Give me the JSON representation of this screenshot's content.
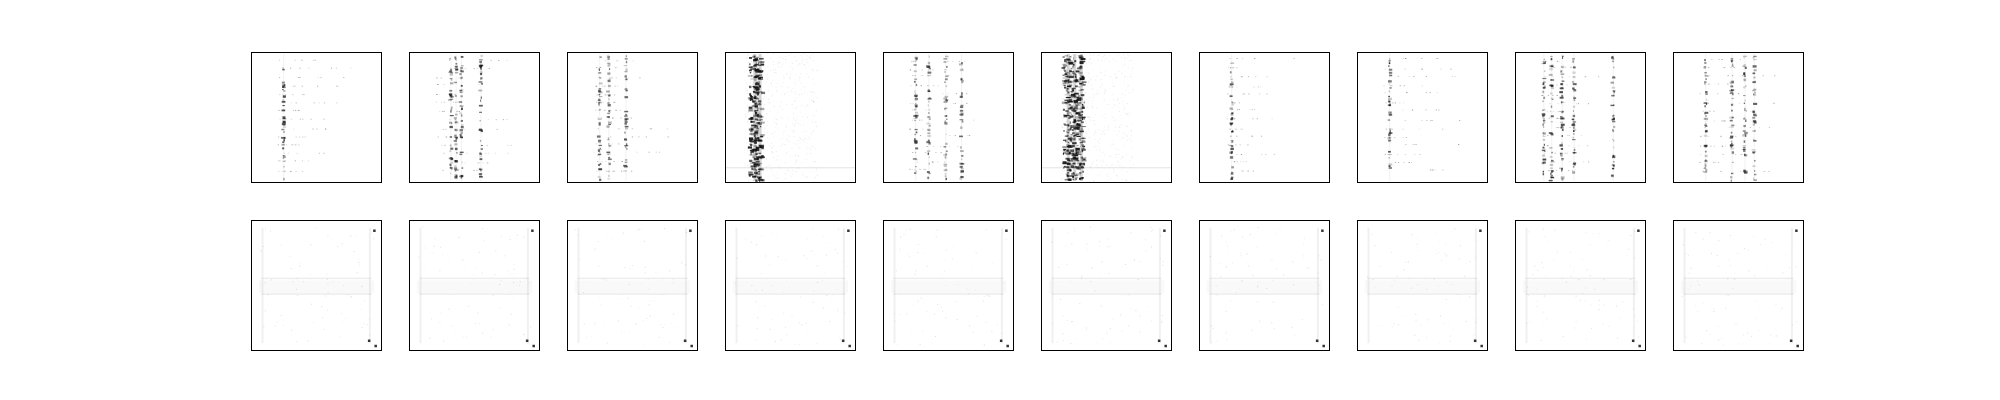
{
  "figure": {
    "background_color": "#ffffff",
    "frame_color": "#000000",
    "ink_color": "#111111"
  },
  "chart_data": {
    "type": "heatmap",
    "title": "",
    "xlabel": "",
    "ylabel": "",
    "grid": false,
    "ticks": false,
    "colormap": "greys",
    "value_range": [
      0,
      1
    ],
    "rows": 2,
    "columns": 10,
    "panels": [
      {
        "row": 0,
        "col": 0,
        "pattern": "vertical-streak",
        "streak_x": [
          0.25
        ],
        "intensity": 0.85
      },
      {
        "row": 0,
        "col": 1,
        "pattern": "vertical-streak",
        "streak_x": [
          0.32,
          0.36,
          0.4,
          0.55
        ],
        "intensity": 0.8
      },
      {
        "row": 0,
        "col": 2,
        "pattern": "vertical-streak",
        "streak_x": [
          0.25,
          0.32,
          0.45
        ],
        "intensity": 0.7
      },
      {
        "row": 0,
        "col": 3,
        "pattern": "dense-band",
        "streak_x": [
          0.22,
          0.26
        ],
        "intensity": 0.95
      },
      {
        "row": 0,
        "col": 4,
        "pattern": "vertical-streak",
        "streak_x": [
          0.25,
          0.35,
          0.48,
          0.6
        ],
        "intensity": 0.7
      },
      {
        "row": 0,
        "col": 5,
        "pattern": "dense-band",
        "streak_x": [
          0.2,
          0.25,
          0.3
        ],
        "intensity": 0.95
      },
      {
        "row": 0,
        "col": 6,
        "pattern": "vertical-streak",
        "streak_x": [
          0.25
        ],
        "intensity": 0.85
      },
      {
        "row": 0,
        "col": 7,
        "pattern": "vertical-streak",
        "streak_x": [
          0.25
        ],
        "intensity": 0.8
      },
      {
        "row": 0,
        "col": 8,
        "pattern": "vertical-streak",
        "streak_x": [
          0.22,
          0.28,
          0.36,
          0.45,
          0.75
        ],
        "intensity": 0.8
      },
      {
        "row": 0,
        "col": 9,
        "pattern": "vertical-streak",
        "streak_x": [
          0.25,
          0.45,
          0.55,
          0.62
        ],
        "intensity": 0.7
      },
      {
        "row": 1,
        "col": 0,
        "pattern": "faint-h-frame",
        "corner_points": [
          [
            0.94,
            0.08
          ],
          [
            0.9,
            0.92
          ],
          [
            0.95,
            0.96
          ]
        ],
        "intensity": 0.18
      },
      {
        "row": 1,
        "col": 1,
        "pattern": "faint-h-frame",
        "corner_points": [
          [
            0.94,
            0.08
          ],
          [
            0.9,
            0.92
          ],
          [
            0.95,
            0.96
          ]
        ],
        "intensity": 0.18
      },
      {
        "row": 1,
        "col": 2,
        "pattern": "faint-h-frame",
        "corner_points": [
          [
            0.94,
            0.08
          ],
          [
            0.9,
            0.92
          ],
          [
            0.95,
            0.96
          ]
        ],
        "intensity": 0.18
      },
      {
        "row": 1,
        "col": 3,
        "pattern": "faint-h-frame",
        "corner_points": [
          [
            0.94,
            0.08
          ],
          [
            0.9,
            0.92
          ],
          [
            0.95,
            0.96
          ]
        ],
        "intensity": 0.18
      },
      {
        "row": 1,
        "col": 4,
        "pattern": "faint-h-frame",
        "corner_points": [
          [
            0.94,
            0.08
          ],
          [
            0.9,
            0.92
          ],
          [
            0.95,
            0.96
          ]
        ],
        "intensity": 0.18
      },
      {
        "row": 1,
        "col": 5,
        "pattern": "faint-h-frame",
        "corner_points": [
          [
            0.94,
            0.08
          ],
          [
            0.9,
            0.92
          ],
          [
            0.95,
            0.96
          ]
        ],
        "intensity": 0.18
      },
      {
        "row": 1,
        "col": 6,
        "pattern": "faint-h-frame",
        "corner_points": [
          [
            0.94,
            0.08
          ],
          [
            0.9,
            0.92
          ],
          [
            0.95,
            0.96
          ]
        ],
        "intensity": 0.18
      },
      {
        "row": 1,
        "col": 7,
        "pattern": "faint-h-frame",
        "corner_points": [
          [
            0.94,
            0.08
          ],
          [
            0.9,
            0.92
          ],
          [
            0.95,
            0.96
          ]
        ],
        "intensity": 0.18
      },
      {
        "row": 1,
        "col": 8,
        "pattern": "faint-h-frame",
        "corner_points": [
          [
            0.94,
            0.08
          ],
          [
            0.9,
            0.92
          ],
          [
            0.95,
            0.96
          ]
        ],
        "intensity": 0.18
      },
      {
        "row": 1,
        "col": 9,
        "pattern": "faint-h-frame",
        "corner_points": [
          [
            0.94,
            0.08
          ],
          [
            0.9,
            0.92
          ],
          [
            0.95,
            0.96
          ]
        ],
        "intensity": 0.18
      }
    ]
  }
}
